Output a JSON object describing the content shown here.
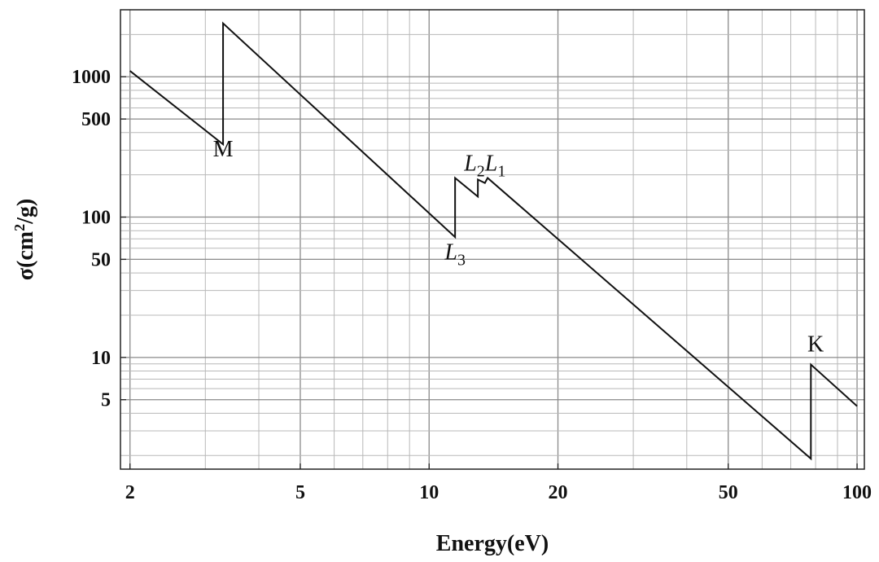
{
  "chart_data": {
    "type": "line",
    "title": "",
    "xlabel": "Energy(eV)",
    "ylabel_parts": {
      "main": "σ(cm",
      "sup": "2",
      "tail": "/g)"
    },
    "x_scale": "log",
    "y_scale": "log",
    "xlim": [
      1.9,
      104
    ],
    "ylim": [
      1.6,
      3000
    ],
    "grid": true,
    "x_ticks": [
      2,
      5,
      10,
      20,
      50,
      100
    ],
    "x_tick_labels": [
      "2",
      "5",
      "10",
      "20",
      "50",
      "100"
    ],
    "y_ticks": [
      5,
      10,
      50,
      100,
      500,
      1000
    ],
    "y_tick_labels": [
      "5",
      "10",
      "50",
      "100",
      "500",
      "1000"
    ],
    "series": [
      {
        "points": [
          [
            2.0,
            1100
          ],
          [
            3.3,
            330
          ],
          [
            3.3,
            2400
          ],
          [
            11.5,
            72
          ],
          [
            11.5,
            190
          ],
          [
            13.0,
            140
          ],
          [
            13.0,
            185
          ],
          [
            13.5,
            175
          ],
          [
            13.7,
            190
          ],
          [
            78,
            1.9
          ],
          [
            78,
            8.9
          ],
          [
            100,
            4.5
          ]
        ]
      }
    ],
    "annotations": [
      {
        "parts": [
          {
            "text": "M",
            "italic": false
          }
        ],
        "x": 3.3,
        "y": 270
      },
      {
        "parts": [
          {
            "text": "L",
            "italic": true
          },
          {
            "text": "3",
            "sub": true
          }
        ],
        "x": 11.5,
        "y": 50
      },
      {
        "parts": [
          {
            "text": "L",
            "italic": true
          },
          {
            "text": "2",
            "sub": true
          },
          {
            "text": "L",
            "italic": true
          },
          {
            "text": "1",
            "sub": true
          }
        ],
        "x": 13.5,
        "y": 215
      },
      {
        "parts": [
          {
            "text": "K",
            "italic": false
          }
        ],
        "x": 80,
        "y": 11
      }
    ]
  }
}
